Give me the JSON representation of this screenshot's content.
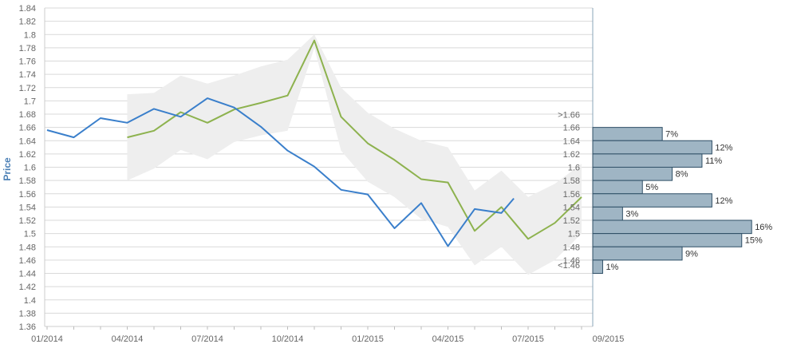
{
  "chart_data": {
    "type": "line",
    "ylabel": "Price",
    "ylim": [
      1.36,
      1.84
    ],
    "yticks": [
      "1.36",
      "1.38",
      "1.4",
      "1.42",
      "1.44",
      "1.46",
      "1.48",
      "1.5",
      "1.52",
      "1.54",
      "1.56",
      "1.58",
      "1.6",
      "1.62",
      "1.64",
      "1.66",
      "1.68",
      "1.7",
      "1.72",
      "1.74",
      "1.76",
      "1.78",
      "1.8",
      "1.82",
      "1.84"
    ],
    "x_tick_labels": [
      "01/2014",
      "04/2014",
      "07/2014",
      "10/2014",
      "01/2015",
      "04/2015",
      "07/2015",
      "09/2015"
    ],
    "colors": {
      "series_blue": "#3a7fcb",
      "series_green": "#8db24e",
      "band": "#eeeeee",
      "histogram_bar": "#9fb5c4",
      "histogram_edge": "#2f4f66",
      "grid": "#d9d9d9"
    },
    "series": [
      {
        "x": [
          "2014-01",
          "2014-02",
          "2014-03",
          "2014-04",
          "2014-05",
          "2014-06",
          "2014-07",
          "2014-08",
          "2014-09",
          "2014-10",
          "2014-11",
          "2014-12",
          "2015-01",
          "2015-02",
          "2015-03",
          "2015-04",
          "2015-05",
          "2015-06",
          "2015-06-15"
        ],
        "values": [
          1.656,
          1.645,
          1.674,
          1.667,
          1.688,
          1.676,
          1.704,
          1.69,
          1.661,
          1.625,
          1.601,
          1.566,
          1.559,
          1.508,
          1.546,
          1.481,
          1.537,
          1.531,
          1.553
        ]
      },
      {
        "x": [
          "2014-04",
          "2014-05",
          "2014-06",
          "2014-07",
          "2014-08",
          "2014-09",
          "2014-10",
          "2014-11",
          "2014-12",
          "2015-01",
          "2015-02",
          "2015-03",
          "2015-04",
          "2015-05",
          "2015-06",
          "2015-07",
          "2015-08",
          "2015-09"
        ],
        "values": [
          1.645,
          1.655,
          1.683,
          1.667,
          1.687,
          1.697,
          1.708,
          1.791,
          1.676,
          1.636,
          1.611,
          1.582,
          1.577,
          1.504,
          1.54,
          1.492,
          1.516,
          1.555
        ]
      }
    ],
    "band": {
      "x": [
        "2014-04",
        "2014-05",
        "2014-06",
        "2014-07",
        "2014-08",
        "2014-09",
        "2014-10",
        "2014-11",
        "2014-12",
        "2015-01",
        "2015-02",
        "2015-03",
        "2015-04",
        "2015-05",
        "2015-06",
        "2015-07",
        "2015-08",
        "2015-09"
      ],
      "upper": [
        1.71,
        1.712,
        1.738,
        1.726,
        1.738,
        1.752,
        1.762,
        1.8,
        1.72,
        1.682,
        1.658,
        1.64,
        1.63,
        1.565,
        1.595,
        1.555,
        1.575,
        1.605
      ],
      "lower": [
        1.58,
        1.598,
        1.626,
        1.612,
        1.638,
        1.648,
        1.655,
        1.78,
        1.625,
        1.578,
        1.555,
        1.522,
        1.51,
        1.452,
        1.48,
        1.438,
        1.46,
        1.5
      ]
    },
    "histogram": {
      "top_label": ">1.66",
      "bottom_label": "<1.46",
      "bins": [
        {
          "y": "1.66",
          "pct": 7,
          "label": "7%"
        },
        {
          "y": "1.64",
          "pct": 12,
          "label": "12%"
        },
        {
          "y": "1.62",
          "pct": 11,
          "label": "11%"
        },
        {
          "y": "1.6",
          "pct": 8,
          "label": "8%"
        },
        {
          "y": "1.58",
          "pct": 5,
          "label": "5%"
        },
        {
          "y": "1.56",
          "pct": 12,
          "label": "12%"
        },
        {
          "y": "1.54",
          "pct": 3,
          "label": "3%"
        },
        {
          "y": "1.52",
          "pct": 16,
          "label": "16%"
        },
        {
          "y": "1.5",
          "pct": 15,
          "label": "15%"
        },
        {
          "y": "1.48",
          "pct": 9,
          "label": "9%"
        },
        {
          "y": "1.46",
          "pct": 1,
          "label": "1%"
        }
      ]
    }
  }
}
